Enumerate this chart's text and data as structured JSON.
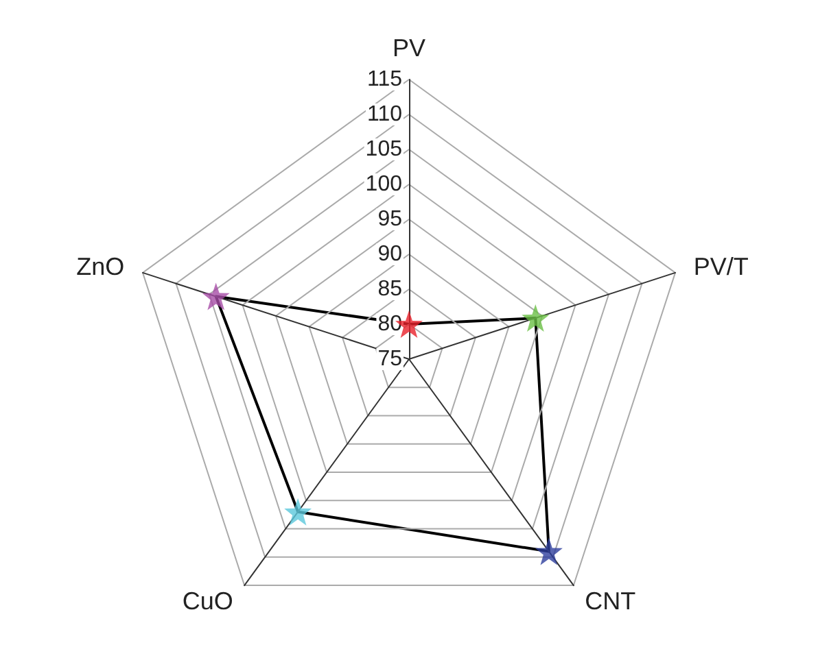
{
  "chart_data": {
    "type": "radar",
    "categories": [
      "PV",
      "PV/T",
      "CNT",
      "CuO",
      "ZnO"
    ],
    "series": [
      {
        "color": "#000000",
        "values": [
          80,
          94,
          109,
          102,
          104
        ],
        "colors": [
          "#e8202a",
          "#6abf45",
          "#2e3f9e",
          "#5bc8dc",
          "#a64ca6"
        ]
      }
    ],
    "ylim": [
      75,
      115
    ],
    "yticks": [
      75,
      80,
      85,
      90,
      95,
      100,
      105,
      110,
      115
    ],
    "marker": "star",
    "grid": true
  }
}
